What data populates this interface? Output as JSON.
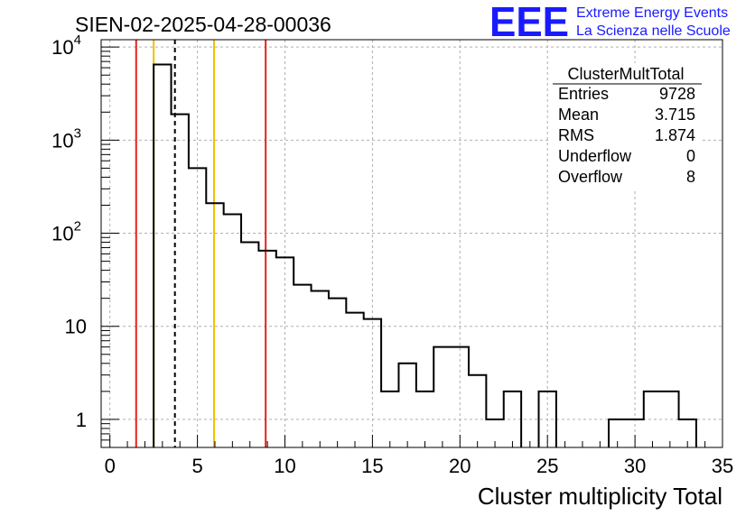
{
  "chart_data": {
    "type": "histogram",
    "title": "SIEN-02-2025-04-28-00036",
    "xlabel": "Cluster multiplicity Total",
    "ylabel": "",
    "x_range": [
      -0.5,
      35.0
    ],
    "y_range": [
      0.5,
      12000
    ],
    "y_scale": "log",
    "grid": true,
    "x_ticks": [
      "0",
      "5",
      "10",
      "15",
      "20",
      "25",
      "30",
      "35"
    ],
    "y_ticks": [
      {
        "value": 1,
        "base": "1",
        "exp": ""
      },
      {
        "value": 10,
        "base": "10",
        "exp": ""
      },
      {
        "value": 100,
        "base": "10",
        "exp": "2"
      },
      {
        "value": 1000,
        "base": "10",
        "exp": "3"
      },
      {
        "value": 10000,
        "base": "10",
        "exp": "4"
      }
    ],
    "bin_width": 1,
    "bin_low_edges": [
      2.5,
      3.5,
      4.5,
      5.5,
      6.5,
      7.5,
      8.5,
      9.5,
      10.5,
      11.5,
      12.5,
      13.5,
      14.5,
      15.5,
      16.5,
      17.5,
      18.5,
      19.5,
      20.5,
      21.5,
      22.5,
      23.5,
      24.5,
      25.5,
      26.5,
      27.5,
      28.5,
      29.5,
      30.5,
      31.5,
      32.5,
      33.5
    ],
    "counts": [
      6500,
      1900,
      500,
      210,
      160,
      80,
      65,
      55,
      28,
      24,
      20,
      14,
      12,
      2,
      4,
      2,
      6,
      6,
      3,
      1,
      2,
      0,
      2,
      0,
      0,
      0,
      1,
      1,
      2,
      2,
      1,
      0
    ],
    "vertical_lines": [
      {
        "x": 1.5,
        "color": "#e8201a",
        "style": "solid"
      },
      {
        "x": 2.5,
        "color": "#f0c000",
        "style": "solid"
      },
      {
        "x": 3.715,
        "color": "#000000",
        "style": "dashed"
      },
      {
        "x": 5.95,
        "color": "#f0c000",
        "style": "solid"
      },
      {
        "x": 8.9,
        "color": "#e8201a",
        "style": "solid"
      }
    ],
    "stats": {
      "name": "ClusterMultTotal",
      "rows": [
        {
          "label": "Entries",
          "value": "9728"
        },
        {
          "label": "Mean",
          "value": "3.715"
        },
        {
          "label": "RMS",
          "value": "1.874"
        },
        {
          "label": "Underflow",
          "value": "0"
        },
        {
          "label": "Overflow",
          "value": "8"
        }
      ]
    },
    "logo": {
      "mark": "EEE",
      "line1": "Extreme Energy Events",
      "line2": "La Scienza nelle Scuole",
      "color": "#1a1aff"
    }
  }
}
